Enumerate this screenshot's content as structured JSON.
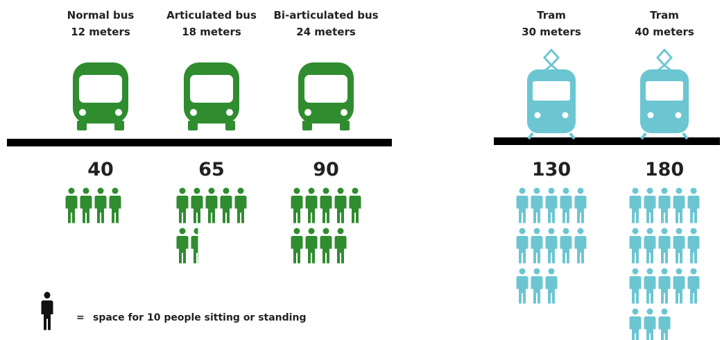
{
  "chart_data": {
    "type": "pictogram",
    "unit": 10,
    "groups": [
      {
        "icon": "bus",
        "color": "#2f8c2f",
        "vehicles": [
          {
            "name": "Normal bus",
            "length": "12 meters",
            "capacity": 40
          },
          {
            "name": "Articulated bus",
            "length": "18 meters",
            "capacity": 65
          },
          {
            "name": "Bi-articulated bus",
            "length": "24 meters",
            "capacity": 90
          }
        ]
      },
      {
        "icon": "tram",
        "color": "#6cc6d2",
        "vehicles": [
          {
            "name": "Tram",
            "length": "30 meters",
            "capacity": 130
          },
          {
            "name": "Tram",
            "length": "40 meters",
            "capacity": 180
          }
        ]
      }
    ],
    "legend": {
      "symbol": "=",
      "label": "space for 10 people sitting or standing",
      "color": "#111111"
    }
  }
}
